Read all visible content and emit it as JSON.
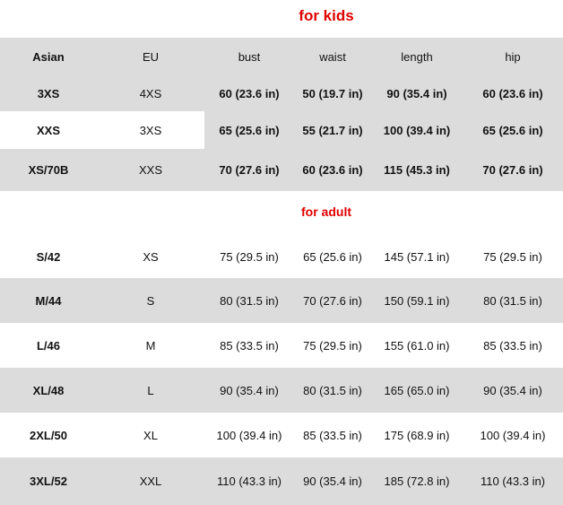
{
  "kids_title": "for kids",
  "adult_title": "for adult",
  "header": [
    "Asian",
    "EU",
    "bust",
    "waist",
    "length",
    "hip"
  ],
  "kids_rows": [
    [
      "3XS",
      "4XS",
      "60 (23.6 in)",
      "50 (19.7 in)",
      "90 (35.4 in)",
      "60 (23.6 in)"
    ],
    [
      "XXS",
      "3XS",
      "65 (25.6 in)",
      "55 (21.7 in)",
      "100 (39.4 in)",
      "65 (25.6 in)"
    ],
    [
      "XS/70B",
      "XXS",
      "70 (27.6 in)",
      "60 (23.6 in)",
      "115 (45.3 in)",
      "70 (27.6 in)"
    ]
  ],
  "adult_rows": [
    [
      "S/42",
      "XS",
      "75 (29.5 in)",
      "65 (25.6 in)",
      "145 (57.1 in)",
      "75 (29.5 in)"
    ],
    [
      "M/44",
      "S",
      "80 (31.5 in)",
      "70 (27.6 in)",
      "150 (59.1 in)",
      "80 (31.5 in)"
    ],
    [
      "L/46",
      "M",
      "85 (33.5 in)",
      "75 (29.5 in)",
      "155 (61.0 in)",
      "85 (33.5 in)"
    ],
    [
      "XL/48",
      "L",
      "90 (35.4 in)",
      "80 (31.5 in)",
      "165 (65.0 in)",
      "90 (35.4 in)"
    ],
    [
      "2XL/50",
      "XL",
      "100 (39.4 in)",
      "85 (33.5 in)",
      "175 (68.9 in)",
      "100 (39.4 in)"
    ],
    [
      "3XL/52",
      "XXL",
      "110 (43.3 in)",
      "90 (35.4 in)",
      "185 (72.8 in)",
      "110 (43.3 in)"
    ]
  ],
  "colors": {
    "title_red": "#e00000",
    "row_gray": "#dcdcdc"
  }
}
